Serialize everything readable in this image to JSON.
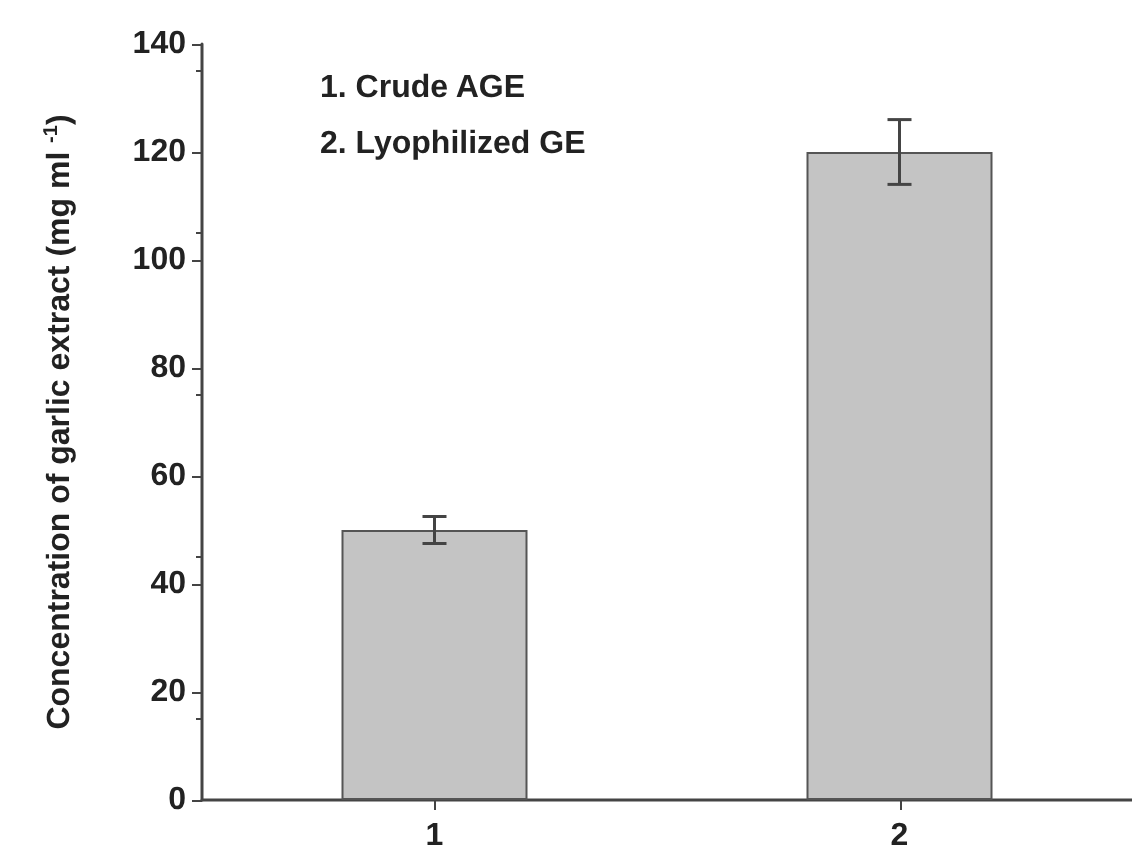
{
  "chart_data": {
    "type": "bar",
    "ylabel": "Concentration of garlic extract (mg ml $^{-1}$)",
    "categories": [
      "1",
      "2"
    ],
    "values": [
      50,
      120
    ],
    "errors": [
      2.5,
      6
    ],
    "color": "#c4c4c4",
    "ylim": [
      0,
      140
    ],
    "yticks": [
      0,
      20,
      40,
      60,
      80,
      100,
      120,
      140
    ],
    "grid": false,
    "annotations": [
      "1. Crude AGE",
      "2. Lyophilized GE"
    ]
  }
}
